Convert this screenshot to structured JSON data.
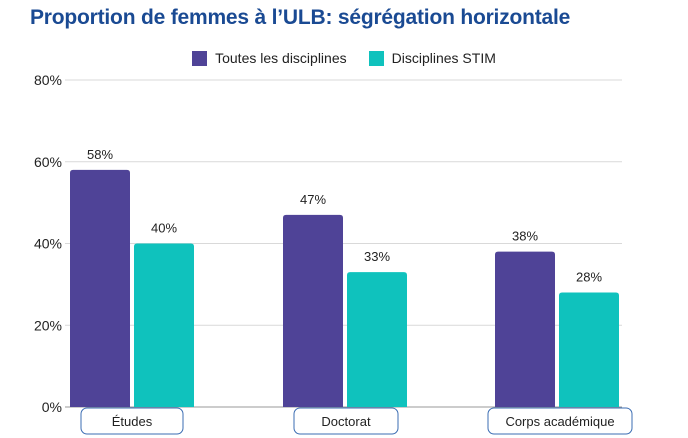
{
  "chart_data": {
    "type": "bar",
    "title": "Proportion de femmes à l’ULB: ségrégation horizontale",
    "categories": [
      "Études",
      "Doctorat",
      "Corps académique"
    ],
    "series": [
      {
        "name": "Toutes les disciplines",
        "values": [
          58,
          47,
          38
        ],
        "labels": [
          "58%",
          "47%",
          "38%"
        ],
        "color": "#4f4397"
      },
      {
        "name": "Disciplines STIM",
        "values": [
          40,
          33,
          28
        ],
        "labels": [
          "40%",
          "33%",
          "28%"
        ],
        "color": "#0fc2bd"
      }
    ],
    "ylim": [
      0,
      80
    ],
    "yticks": [
      0,
      20,
      40,
      60,
      80
    ],
    "ytick_labels": [
      "0%",
      "20%",
      "40%",
      "60%",
      "80%"
    ],
    "grid": true,
    "legend_position": "top-center",
    "title_color": "#1a4a93",
    "category_box_color": "#3b6db3"
  }
}
